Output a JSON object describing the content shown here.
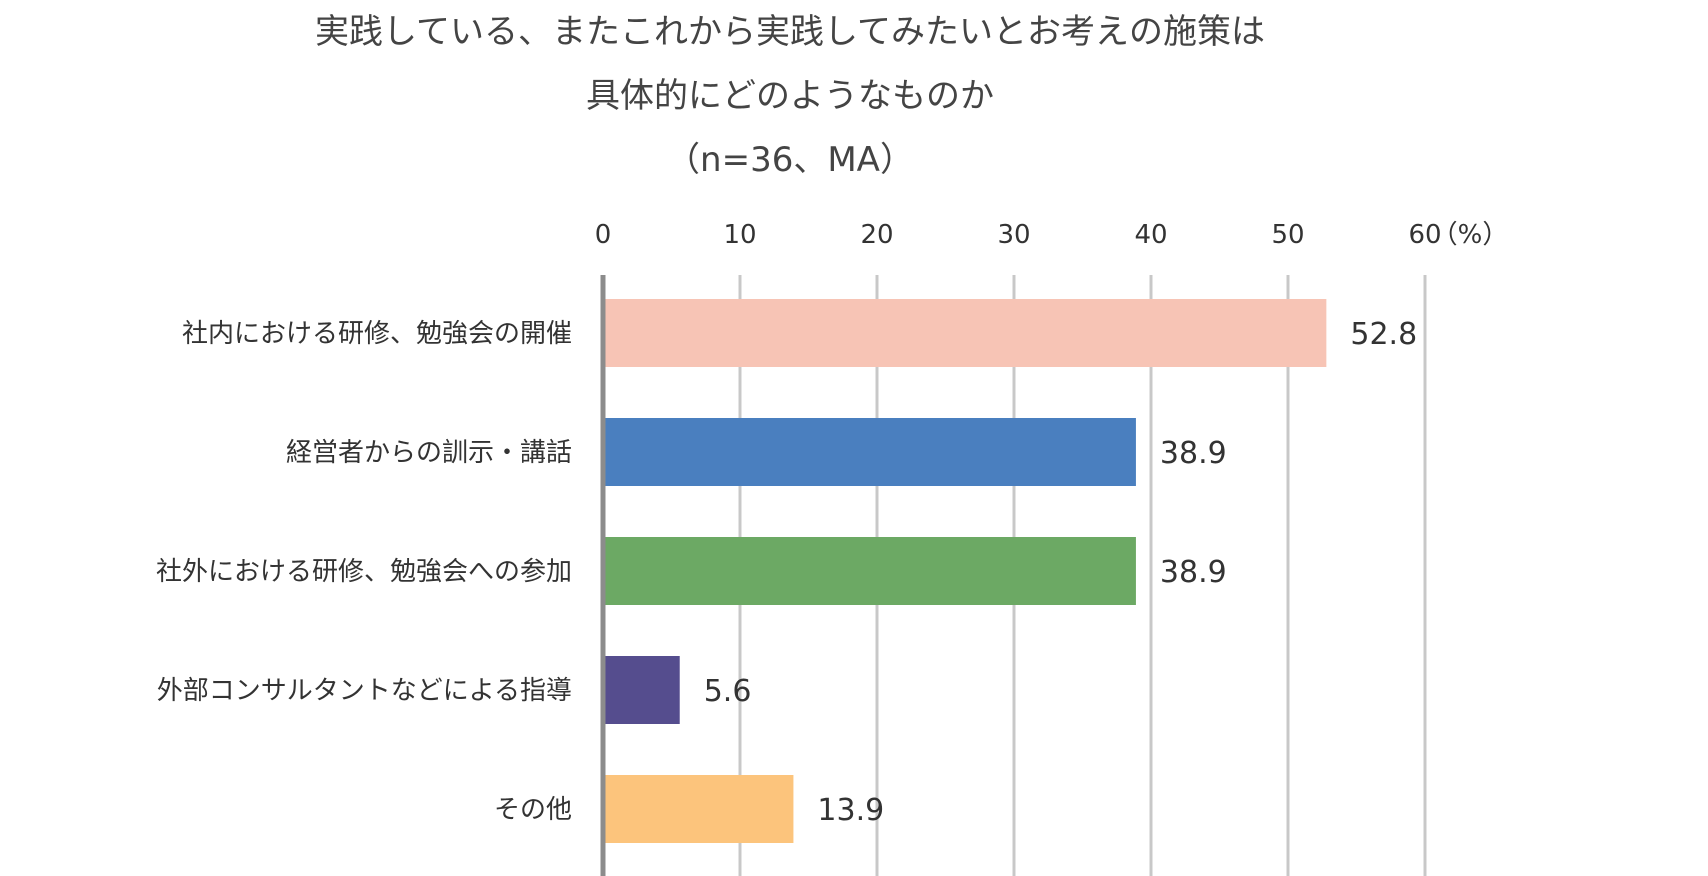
{
  "chart_data": {
    "type": "bar",
    "orientation": "horizontal",
    "title_lines": [
      "実践している、またこれから実践してみたいとお考えの施策は",
      "具体的にどのようなものか",
      "（n=36、MA）"
    ],
    "unit_label": "（%）",
    "categories": [
      "社内における研修、勉強会の開催",
      "経営者からの訓示・講話",
      "社外における研修、勉強会への参加",
      "外部コンサルタントなどによる指導",
      "その他"
    ],
    "values": [
      52.8,
      38.9,
      38.9,
      5.6,
      13.9
    ],
    "value_labels": [
      "52.8",
      "38.9",
      "38.9",
      "5.6",
      "13.9"
    ],
    "colors": [
      "#F7C4B5",
      "#4A7FBF",
      "#6CA964",
      "#554D8E",
      "#FCC47C"
    ],
    "xlim": [
      0,
      60
    ],
    "xticks": [
      "0",
      "10",
      "20",
      "30",
      "40",
      "50",
      "60"
    ],
    "grid": true
  }
}
